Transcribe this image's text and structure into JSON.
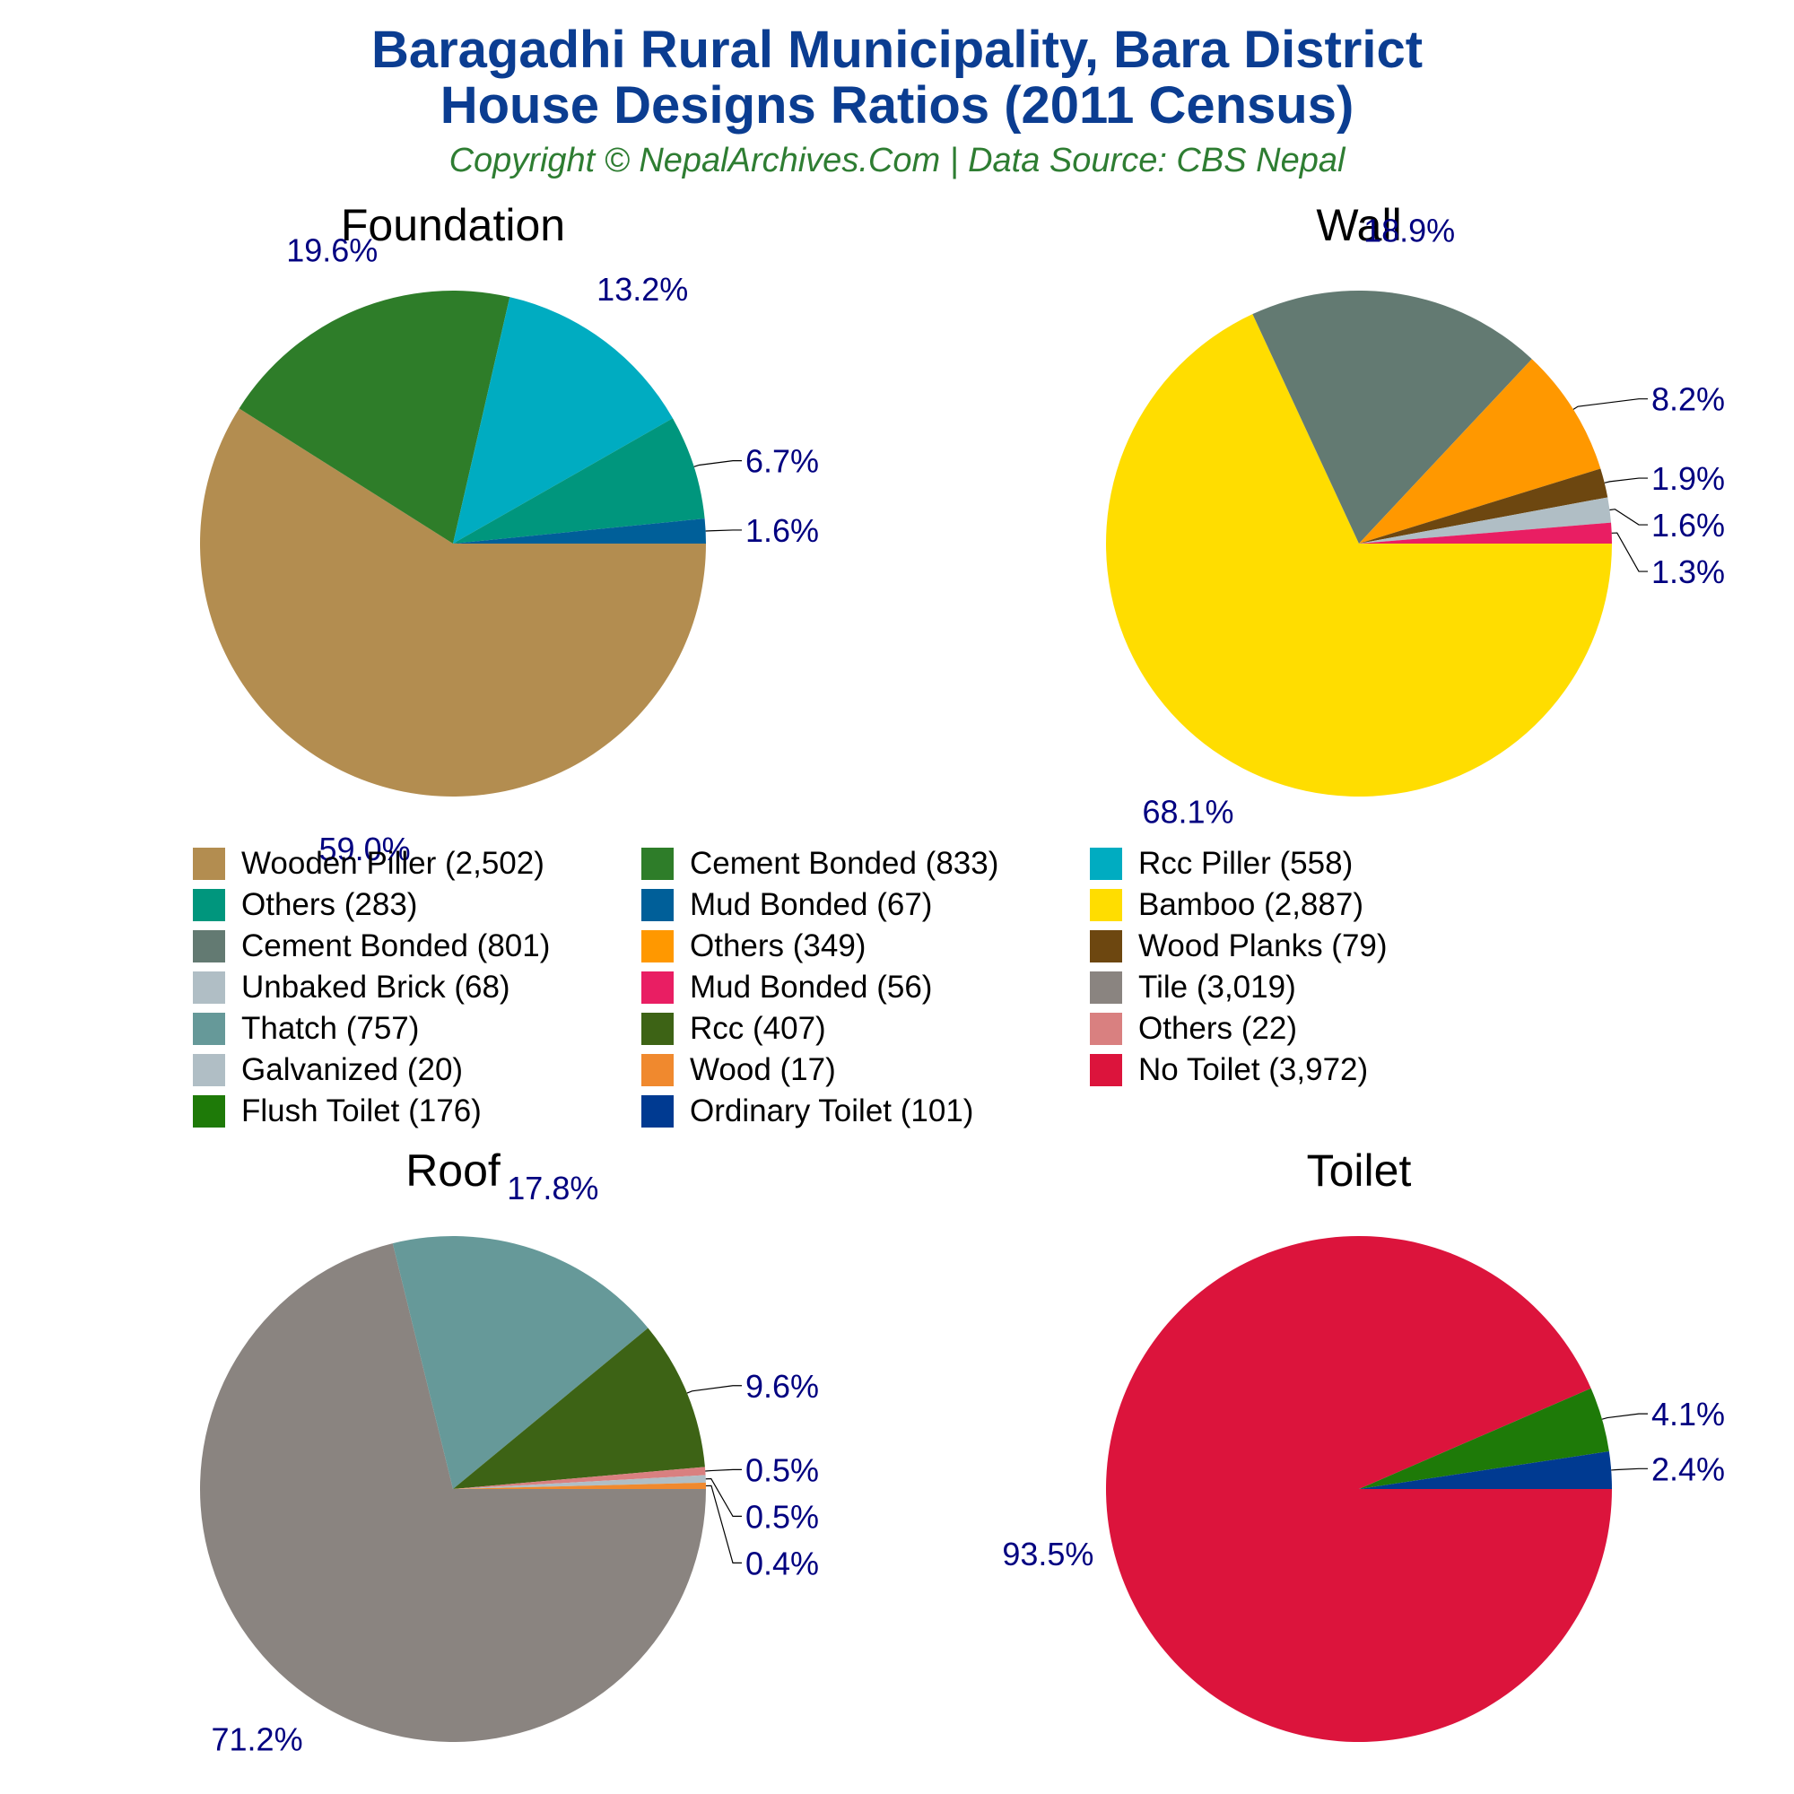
{
  "header": {
    "title_line1": "Baragadhi Rural Municipality, Bara District",
    "title_line2": "House Designs Ratios (2011 Census)",
    "subtitle": "Copyright © NepalArchives.Com | Data Source: CBS Nepal"
  },
  "colors": {
    "title": "#0b3d91",
    "subtitle": "#2e7d32",
    "percent_label": "#000080",
    "leader_line": "#000000"
  },
  "chart_data": [
    {
      "type": "pie",
      "title": "Foundation",
      "categories": [
        "Wooden Piller",
        "Cement Bonded",
        "Rcc Piller",
        "Others",
        "Mud Bonded"
      ],
      "values": [
        2502,
        833,
        558,
        283,
        67
      ],
      "percent_labels": [
        "59.0%",
        "19.6%",
        "13.2%",
        "6.7%",
        "1.6%"
      ],
      "colors": [
        "#b38d50",
        "#2e7d29",
        "#00acc1",
        "#00967d",
        "#005f99"
      ]
    },
    {
      "type": "pie",
      "title": "Wall",
      "categories": [
        "Bamboo",
        "Cement Bonded",
        "Others",
        "Wood Planks",
        "Unbaked Brick",
        "Mud Bonded"
      ],
      "values": [
        2887,
        801,
        349,
        79,
        68,
        56
      ],
      "percent_labels": [
        "68.1%",
        "18.9%",
        "8.2%",
        "1.9%",
        "1.6%",
        "1.3%"
      ],
      "colors": [
        "#ffdd00",
        "#637a72",
        "#ff9800",
        "#6d4710",
        "#b0bec5",
        "#e91e63"
      ]
    },
    {
      "type": "pie",
      "title": "Roof",
      "categories": [
        "Tile",
        "Thatch",
        "Rcc",
        "Others",
        "Galvanized",
        "Wood"
      ],
      "values": [
        3019,
        757,
        407,
        22,
        20,
        17
      ],
      "percent_labels": [
        "71.2%",
        "17.8%",
        "9.6%",
        "0.5%",
        "0.5%",
        "0.4%"
      ],
      "colors": [
        "#8a8480",
        "#669999",
        "#3d6315",
        "#d98080",
        "#b0bec5",
        "#f0892e"
      ]
    },
    {
      "type": "pie",
      "title": "Toilet",
      "categories": [
        "No Toilet",
        "Flush Toilet",
        "Ordinary Toilet"
      ],
      "values": [
        3972,
        176,
        101
      ],
      "percent_labels": [
        "93.5%",
        "4.1%",
        "2.4%"
      ],
      "colors": [
        "#dc143c",
        "#1e7a08",
        "#003a91"
      ]
    }
  ],
  "legend": {
    "placement": "center",
    "items": [
      {
        "label": "Wooden Piller (2,502)",
        "color": "#b38d50"
      },
      {
        "label": "Cement Bonded (833)",
        "color": "#2e7d29"
      },
      {
        "label": "Rcc Piller (558)",
        "color": "#00acc1"
      },
      {
        "label": "Others (283)",
        "color": "#00967d"
      },
      {
        "label": "Mud Bonded (67)",
        "color": "#005f99"
      },
      {
        "label": "Bamboo (2,887)",
        "color": "#ffdd00"
      },
      {
        "label": "Cement Bonded (801)",
        "color": "#637a72"
      },
      {
        "label": "Others (349)",
        "color": "#ff9800"
      },
      {
        "label": "Wood Planks (79)",
        "color": "#6d4710"
      },
      {
        "label": "Unbaked Brick (68)",
        "color": "#b0bec5"
      },
      {
        "label": "Mud Bonded (56)",
        "color": "#e91e63"
      },
      {
        "label": "Tile (3,019)",
        "color": "#8a8480"
      },
      {
        "label": "Thatch (757)",
        "color": "#669999"
      },
      {
        "label": "Rcc (407)",
        "color": "#3d6315"
      },
      {
        "label": "Others (22)",
        "color": "#d98080"
      },
      {
        "label": "Galvanized (20)",
        "color": "#b0bec5"
      },
      {
        "label": "Wood (17)",
        "color": "#f0892e"
      },
      {
        "label": "No Toilet (3,972)",
        "color": "#dc143c"
      },
      {
        "label": "Flush Toilet (176)",
        "color": "#1e7a08"
      },
      {
        "label": "Ordinary Toilet (101)",
        "color": "#003a91"
      }
    ]
  }
}
